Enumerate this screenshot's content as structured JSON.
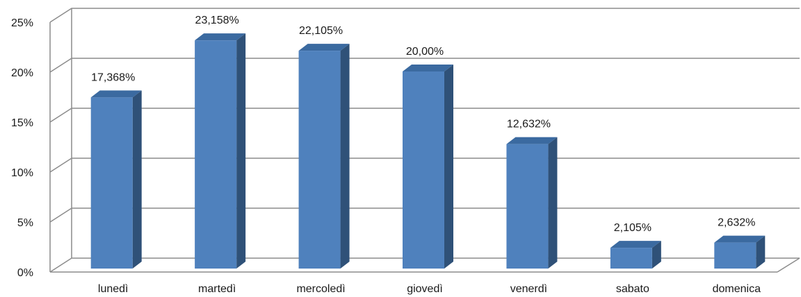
{
  "chart_data": {
    "type": "bar",
    "title": "",
    "xlabel": "",
    "ylabel": "",
    "categories": [
      "lunedì",
      "martedì",
      "mercoledì",
      "giovedì",
      "venerdì",
      "sabato",
      "domenica"
    ],
    "values": [
      17.368,
      23.158,
      22.105,
      20.0,
      12.632,
      2.105,
      2.632
    ],
    "value_labels": [
      "17,368%",
      "23,158%",
      "22,105%",
      "20,00%",
      "12,632%",
      "2,105%",
      "2,632%"
    ],
    "ylim": [
      0,
      25
    ],
    "yticks": [
      0,
      5,
      10,
      15,
      20,
      25
    ],
    "ytick_labels": [
      "0%",
      "5%",
      "10%",
      "15%",
      "20%",
      "25%"
    ],
    "grid": true,
    "style": "3d-column",
    "colors": {
      "bar_front": "#4f81bd",
      "bar_side": "#2f5178",
      "bar_top": "#3b6aa0",
      "grid": "#8c8c8c"
    }
  }
}
